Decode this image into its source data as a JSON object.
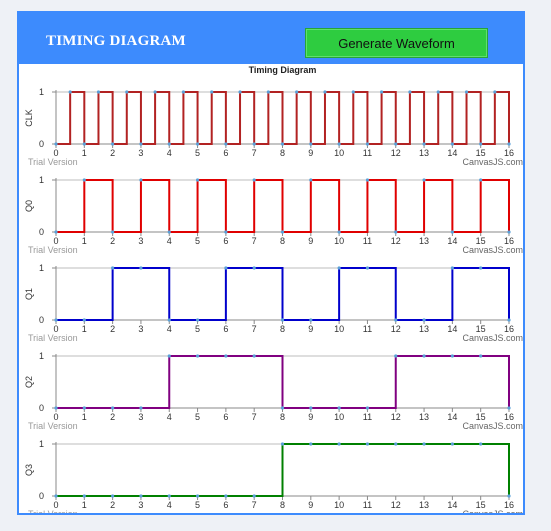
{
  "header": {
    "title": "TIMING DIAGRAM",
    "button_label": "Generate Waveform"
  },
  "chart_title": "Timing Diagram",
  "watermark": "Trial Version",
  "credit": "CanvasJS.com",
  "chart_data": [
    {
      "type": "line",
      "ylabel": "CLK",
      "color": "#b22222",
      "xlim": [
        0,
        16
      ],
      "ylim": [
        0,
        1
      ],
      "x_ticks": [
        0,
        1,
        2,
        3,
        4,
        5,
        6,
        7,
        8,
        9,
        10,
        11,
        12,
        13,
        14,
        15,
        16
      ],
      "y_ticks": [
        0,
        1
      ],
      "step": 0.5,
      "values": [
        0,
        1,
        0,
        1,
        0,
        1,
        0,
        1,
        0,
        1,
        0,
        1,
        0,
        1,
        0,
        1,
        0,
        1,
        0,
        1,
        0,
        1,
        0,
        1,
        0,
        1,
        0,
        1,
        0,
        1,
        0,
        1,
        0
      ]
    },
    {
      "type": "line",
      "ylabel": "Q0",
      "color": "#e00000",
      "xlim": [
        0,
        16
      ],
      "ylim": [
        0,
        1
      ],
      "x_ticks": [
        0,
        1,
        2,
        3,
        4,
        5,
        6,
        7,
        8,
        9,
        10,
        11,
        12,
        13,
        14,
        15,
        16
      ],
      "y_ticks": [
        0,
        1
      ],
      "step": 1,
      "values": [
        0,
        1,
        0,
        1,
        0,
        1,
        0,
        1,
        0,
        1,
        0,
        1,
        0,
        1,
        0,
        1,
        0
      ]
    },
    {
      "type": "line",
      "ylabel": "Q1",
      "color": "#0000cc",
      "xlim": [
        0,
        16
      ],
      "ylim": [
        0,
        1
      ],
      "x_ticks": [
        0,
        1,
        2,
        3,
        4,
        5,
        6,
        7,
        8,
        9,
        10,
        11,
        12,
        13,
        14,
        15,
        16
      ],
      "y_ticks": [
        0,
        1
      ],
      "step": 1,
      "values": [
        0,
        0,
        1,
        1,
        0,
        0,
        1,
        1,
        0,
        0,
        1,
        1,
        0,
        0,
        1,
        1,
        0
      ]
    },
    {
      "type": "line",
      "ylabel": "Q2",
      "color": "#800080",
      "xlim": [
        0,
        16
      ],
      "ylim": [
        0,
        1
      ],
      "x_ticks": [
        0,
        1,
        2,
        3,
        4,
        5,
        6,
        7,
        8,
        9,
        10,
        11,
        12,
        13,
        14,
        15,
        16
      ],
      "y_ticks": [
        0,
        1
      ],
      "step": 1,
      "values": [
        0,
        0,
        0,
        0,
        1,
        1,
        1,
        1,
        0,
        0,
        0,
        0,
        1,
        1,
        1,
        1,
        0
      ]
    },
    {
      "type": "line",
      "ylabel": "Q3",
      "color": "#008000",
      "xlim": [
        0,
        16
      ],
      "ylim": [
        0,
        1
      ],
      "x_ticks": [
        0,
        1,
        2,
        3,
        4,
        5,
        6,
        7,
        8,
        9,
        10,
        11,
        12,
        13,
        14,
        15,
        16
      ],
      "y_ticks": [
        0,
        1
      ],
      "step": 1,
      "values": [
        0,
        0,
        0,
        0,
        0,
        0,
        0,
        0,
        1,
        1,
        1,
        1,
        1,
        1,
        1,
        1,
        0
      ]
    }
  ],
  "marker_color": "#5aa0d8"
}
